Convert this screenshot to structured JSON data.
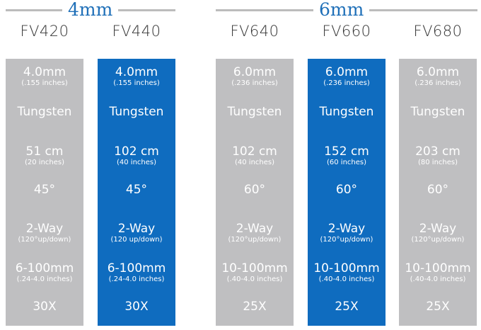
{
  "groups": [
    {
      "label": "4mm"
    },
    {
      "label": "6mm"
    }
  ],
  "columns": [
    {
      "model": "FV420",
      "style": "gray",
      "diameter": "4.0mm",
      "diameter_in": "(.155 inches)",
      "material": "Tungsten",
      "length": "51 cm",
      "length_in": "(20 inches)",
      "angle": "45°",
      "articulation": "2-Way",
      "articulation_detail": "(120°up/down)",
      "focus": "6-100mm",
      "focus_in": "(.24-4.0 inches)",
      "zoom": "30X"
    },
    {
      "model": "FV440",
      "style": "blue",
      "diameter": "4.0mm",
      "diameter_in": "(.155 inches)",
      "material": "Tungsten",
      "length": "102 cm",
      "length_in": "(40 inches)",
      "angle": "45°",
      "articulation": "2-Way",
      "articulation_detail": "(120 up/down)",
      "focus": "6-100mm",
      "focus_in": "(.24-4.0 inches)",
      "zoom": "30X"
    },
    {
      "model": "FV640",
      "style": "gray",
      "diameter": "6.0mm",
      "diameter_in": "(.236 inches)",
      "material": "Tungsten",
      "length": "102 cm",
      "length_in": "(40 inches)",
      "angle": "60°",
      "articulation": "2-Way",
      "articulation_detail": "(120°up/down)",
      "focus": "10-100mm",
      "focus_in": "(.40-4.0 inches)",
      "zoom": "25X"
    },
    {
      "model": "FV660",
      "style": "blue",
      "diameter": "6.0mm",
      "diameter_in": "(.236 inches)",
      "material": "Tungsten",
      "length": "152 cm",
      "length_in": "(60 inches)",
      "angle": "60°",
      "articulation": "2-Way",
      "articulation_detail": "(120°up/down)",
      "focus": "10-100mm",
      "focus_in": "(.40-4.0 inches)",
      "zoom": "25X"
    },
    {
      "model": "FV680",
      "style": "gray",
      "diameter": "6.0mm",
      "diameter_in": "(.236 inches)",
      "material": "Tungsten",
      "length": "203 cm",
      "length_in": "(80 inches)",
      "angle": "60°",
      "articulation": "2-Way",
      "articulation_detail": "(120°up/down)",
      "focus": "10-100mm",
      "focus_in": "(.40-4.0 inches)",
      "zoom": "25X"
    }
  ],
  "colors": {
    "gray_column": "#bfbfc1",
    "blue_column": "#0f6cbf",
    "group_label": "#1e6fb8",
    "group_line": "#bcbcbc"
  }
}
